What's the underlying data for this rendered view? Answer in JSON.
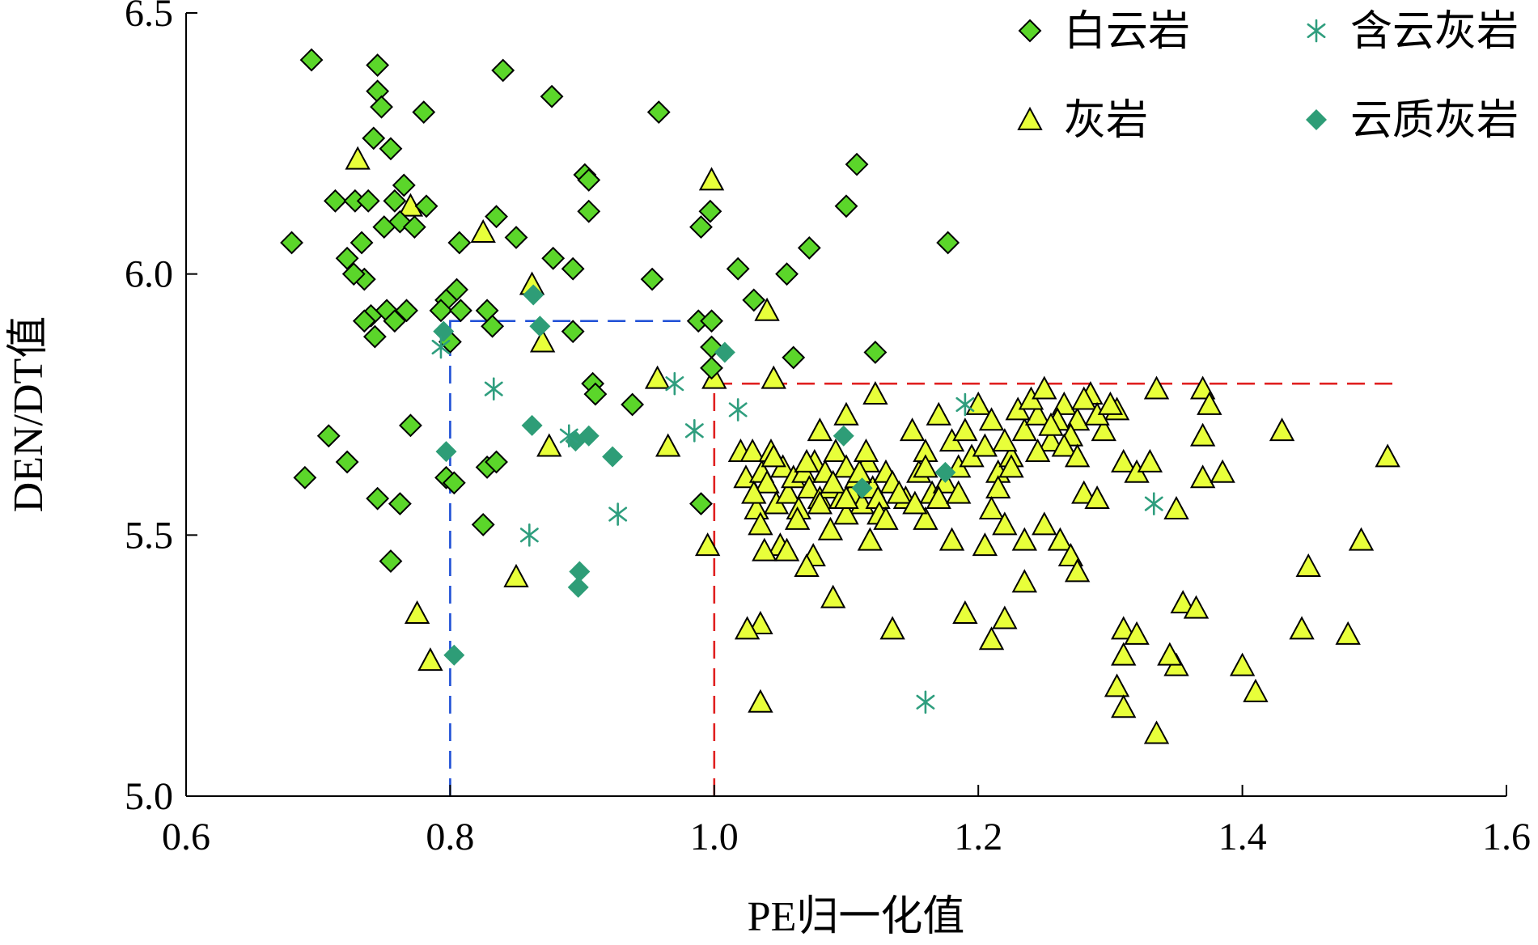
{
  "chart_data": {
    "type": "scatter",
    "title": "",
    "xlabel": "PE归一化值",
    "ylabel": "DEN/DT值",
    "xlim": [
      0.6,
      1.6
    ],
    "ylim": [
      5.0,
      6.5
    ],
    "x_ticks": [
      "0.6",
      "0.8",
      "1.0",
      "1.2",
      "1.4",
      "1.6"
    ],
    "y_ticks": [
      "5.0",
      "5.5",
      "6.0",
      "6.5"
    ],
    "grid": false,
    "legend_position": "top-right",
    "series": [
      {
        "name": "白云岩",
        "marker": "diamond",
        "color": "#5bd62a",
        "points": [
          [
            0.695,
            6.41
          ],
          [
            0.745,
            6.4
          ],
          [
            0.84,
            6.39
          ],
          [
            0.745,
            6.35
          ],
          [
            0.877,
            6.34
          ],
          [
            0.748,
            6.32
          ],
          [
            0.78,
            6.31
          ],
          [
            0.958,
            6.31
          ],
          [
            0.742,
            6.26
          ],
          [
            0.755,
            6.24
          ],
          [
            1.108,
            6.21
          ],
          [
            0.902,
            6.19
          ],
          [
            0.765,
            6.17
          ],
          [
            0.905,
            6.18
          ],
          [
            0.758,
            6.14
          ],
          [
            0.713,
            6.14
          ],
          [
            0.728,
            6.14
          ],
          [
            0.738,
            6.14
          ],
          [
            0.782,
            6.13
          ],
          [
            1.1,
            6.13
          ],
          [
            0.905,
            6.12
          ],
          [
            0.835,
            6.11
          ],
          [
            0.997,
            6.12
          ],
          [
            0.762,
            6.1
          ],
          [
            0.75,
            6.09
          ],
          [
            0.773,
            6.09
          ],
          [
            0.99,
            6.09
          ],
          [
            0.68,
            6.06
          ],
          [
            0.733,
            6.06
          ],
          [
            0.807,
            6.06
          ],
          [
            0.85,
            6.07
          ],
          [
            1.177,
            6.06
          ],
          [
            1.072,
            6.05
          ],
          [
            0.722,
            6.03
          ],
          [
            0.878,
            6.03
          ],
          [
            1.018,
            6.01
          ],
          [
            0.893,
            6.01
          ],
          [
            1.055,
            6.0
          ],
          [
            0.735,
            5.99
          ],
          [
            0.727,
            6.0
          ],
          [
            0.953,
            5.99
          ],
          [
            0.805,
            5.97
          ],
          [
            0.797,
            5.95
          ],
          [
            1.03,
            5.95
          ],
          [
            0.793,
            5.93
          ],
          [
            0.808,
            5.93
          ],
          [
            0.752,
            5.93
          ],
          [
            0.767,
            5.93
          ],
          [
            0.74,
            5.92
          ],
          [
            0.828,
            5.93
          ],
          [
            0.735,
            5.91
          ],
          [
            0.758,
            5.91
          ],
          [
            0.832,
            5.9
          ],
          [
            0.988,
            5.91
          ],
          [
            0.998,
            5.91
          ],
          [
            0.743,
            5.88
          ],
          [
            0.893,
            5.89
          ],
          [
            0.8,
            5.87
          ],
          [
            0.998,
            5.86
          ],
          [
            1.06,
            5.84
          ],
          [
            1.122,
            5.85
          ],
          [
            0.998,
            5.82
          ],
          [
            0.908,
            5.79
          ],
          [
            0.91,
            5.77
          ],
          [
            0.938,
            5.75
          ],
          [
            0.708,
            5.69
          ],
          [
            0.77,
            5.71
          ],
          [
            0.69,
            5.61
          ],
          [
            0.722,
            5.64
          ],
          [
            0.828,
            5.63
          ],
          [
            0.835,
            5.64
          ],
          [
            0.797,
            5.61
          ],
          [
            0.803,
            5.6
          ],
          [
            0.745,
            5.57
          ],
          [
            0.762,
            5.56
          ],
          [
            0.99,
            5.56
          ],
          [
            0.825,
            5.52
          ],
          [
            0.755,
            5.45
          ]
        ]
      },
      {
        "name": "含云灰岩",
        "marker": "asterisk",
        "color": "#2f9e7e",
        "points": [
          [
            0.793,
            5.86
          ],
          [
            0.833,
            5.78
          ],
          [
            0.97,
            5.79
          ],
          [
            1.018,
            5.74
          ],
          [
            0.985,
            5.7
          ],
          [
            0.89,
            5.69
          ],
          [
            1.19,
            5.75
          ],
          [
            0.927,
            5.54
          ],
          [
            0.86,
            5.5
          ],
          [
            1.333,
            5.56
          ],
          [
            1.16,
            5.18
          ]
        ]
      },
      {
        "name": "灰岩",
        "marker": "triangle",
        "color": "#e8ff3a",
        "points": [
          [
            0.73,
            6.22
          ],
          [
            0.77,
            6.13
          ],
          [
            0.998,
            6.18
          ],
          [
            0.825,
            6.08
          ],
          [
            0.862,
            5.98
          ],
          [
            0.87,
            5.87
          ],
          [
            1.04,
            5.93
          ],
          [
            0.957,
            5.8
          ],
          [
            1.0,
            5.8
          ],
          [
            1.045,
            5.8
          ],
          [
            1.122,
            5.77
          ],
          [
            1.08,
            5.7
          ],
          [
            1.1,
            5.73
          ],
          [
            0.775,
            5.35
          ],
          [
            0.785,
            5.26
          ],
          [
            0.85,
            5.42
          ],
          [
            0.965,
            5.67
          ],
          [
            0.875,
            5.67
          ],
          [
            0.995,
            5.48
          ],
          [
            1.02,
            5.66
          ],
          [
            1.024,
            5.61
          ],
          [
            1.029,
            5.66
          ],
          [
            1.032,
            5.55
          ],
          [
            1.036,
            5.62
          ],
          [
            1.04,
            5.6
          ],
          [
            1.043,
            5.66
          ],
          [
            1.047,
            5.56
          ],
          [
            1.052,
            5.63
          ],
          [
            1.056,
            5.58
          ],
          [
            1.06,
            5.61
          ],
          [
            1.064,
            5.55
          ],
          [
            1.068,
            5.62
          ],
          [
            1.072,
            5.59
          ],
          [
            1.076,
            5.64
          ],
          [
            1.08,
            5.57
          ],
          [
            1.084,
            5.62
          ],
          [
            1.088,
            5.59
          ],
          [
            1.092,
            5.66
          ],
          [
            1.096,
            5.57
          ],
          [
            1.1,
            5.63
          ],
          [
            1.104,
            5.58
          ],
          [
            1.108,
            5.61
          ],
          [
            1.112,
            5.56
          ],
          [
            1.116,
            5.64
          ],
          [
            1.12,
            5.59
          ],
          [
            1.124,
            5.57
          ],
          [
            1.13,
            5.62
          ],
          [
            1.035,
            5.52
          ],
          [
            1.05,
            5.48
          ],
          [
            1.063,
            5.53
          ],
          [
            1.075,
            5.46
          ],
          [
            1.088,
            5.51
          ],
          [
            1.1,
            5.54
          ],
          [
            1.118,
            5.49
          ],
          [
            1.03,
            5.58
          ],
          [
            1.045,
            5.65
          ],
          [
            1.07,
            5.64
          ],
          [
            1.09,
            5.6
          ],
          [
            1.11,
            5.62
          ],
          [
            1.135,
            5.6
          ],
          [
            1.145,
            5.57
          ],
          [
            1.155,
            5.62
          ],
          [
            1.165,
            5.58
          ],
          [
            1.175,
            5.6
          ],
          [
            1.185,
            5.63
          ],
          [
            1.195,
            5.65
          ],
          [
            1.205,
            5.67
          ],
          [
            1.215,
            5.62
          ],
          [
            1.225,
            5.65
          ],
          [
            1.235,
            5.7
          ],
          [
            1.245,
            5.73
          ],
          [
            1.255,
            5.68
          ],
          [
            1.265,
            5.75
          ],
          [
            1.275,
            5.72
          ],
          [
            1.285,
            5.77
          ],
          [
            1.295,
            5.7
          ],
          [
            1.305,
            5.74
          ],
          [
            1.15,
            5.7
          ],
          [
            1.16,
            5.66
          ],
          [
            1.17,
            5.73
          ],
          [
            1.18,
            5.68
          ],
          [
            1.19,
            5.7
          ],
          [
            1.2,
            5.75
          ],
          [
            1.21,
            5.72
          ],
          [
            1.22,
            5.68
          ],
          [
            1.23,
            5.74
          ],
          [
            1.24,
            5.76
          ],
          [
            1.25,
            5.78
          ],
          [
            1.26,
            5.72
          ],
          [
            1.27,
            5.69
          ],
          [
            1.28,
            5.76
          ],
          [
            1.29,
            5.73
          ],
          [
            1.3,
            5.75
          ],
          [
            1.31,
            5.64
          ],
          [
            1.215,
            5.59
          ],
          [
            1.225,
            5.63
          ],
          [
            1.245,
            5.66
          ],
          [
            1.255,
            5.71
          ],
          [
            1.265,
            5.67
          ],
          [
            1.275,
            5.65
          ],
          [
            1.21,
            5.55
          ],
          [
            1.22,
            5.52
          ],
          [
            1.235,
            5.49
          ],
          [
            1.18,
            5.49
          ],
          [
            1.16,
            5.53
          ],
          [
            1.205,
            5.48
          ],
          [
            1.25,
            5.52
          ],
          [
            1.262,
            5.49
          ],
          [
            1.27,
            5.46
          ],
          [
            1.275,
            5.43
          ],
          [
            1.28,
            5.58
          ],
          [
            1.29,
            5.57
          ],
          [
            1.32,
            5.62
          ],
          [
            1.33,
            5.64
          ],
          [
            1.35,
            5.55
          ],
          [
            1.37,
            5.61
          ],
          [
            1.37,
            5.69
          ],
          [
            1.385,
            5.62
          ],
          [
            1.335,
            5.78
          ],
          [
            1.37,
            5.78
          ],
          [
            1.375,
            5.75
          ],
          [
            1.43,
            5.7
          ],
          [
            1.51,
            5.65
          ],
          [
            1.49,
            5.49
          ],
          [
            1.45,
            5.44
          ],
          [
            1.355,
            5.37
          ],
          [
            1.365,
            5.36
          ],
          [
            1.31,
            5.32
          ],
          [
            1.32,
            5.31
          ],
          [
            1.35,
            5.25
          ],
          [
            1.4,
            5.25
          ],
          [
            1.41,
            5.2
          ],
          [
            1.445,
            5.32
          ],
          [
            1.48,
            5.31
          ],
          [
            1.305,
            5.21
          ],
          [
            1.31,
            5.17
          ],
          [
            1.335,
            5.12
          ],
          [
            1.31,
            5.27
          ],
          [
            1.345,
            5.27
          ],
          [
            1.19,
            5.35
          ],
          [
            1.21,
            5.3
          ],
          [
            1.22,
            5.34
          ],
          [
            1.235,
            5.41
          ],
          [
            1.135,
            5.32
          ],
          [
            1.09,
            5.38
          ],
          [
            1.07,
            5.44
          ],
          [
            1.055,
            5.47
          ],
          [
            1.038,
            5.47
          ],
          [
            1.035,
            5.33
          ],
          [
            1.025,
            5.32
          ],
          [
            1.035,
            5.18
          ],
          [
            1.14,
            5.58
          ],
          [
            1.152,
            5.56
          ],
          [
            1.17,
            5.57
          ],
          [
            1.185,
            5.58
          ],
          [
            1.16,
            5.63
          ],
          [
            1.115,
            5.66
          ],
          [
            1.125,
            5.54
          ],
          [
            1.13,
            5.53
          ],
          [
            1.1,
            5.57
          ],
          [
            1.08,
            5.56
          ]
        ]
      },
      {
        "name": "云质灰岩",
        "marker": "filled-diamond",
        "color": "#2e9d77",
        "points": [
          [
            0.863,
            5.96
          ],
          [
            0.868,
            5.9
          ],
          [
            0.795,
            5.89
          ],
          [
            1.008,
            5.85
          ],
          [
            0.862,
            5.71
          ],
          [
            0.895,
            5.68
          ],
          [
            0.905,
            5.69
          ],
          [
            0.923,
            5.65
          ],
          [
            0.797,
            5.66
          ],
          [
            1.098,
            5.69
          ],
          [
            1.112,
            5.59
          ],
          [
            1.175,
            5.62
          ],
          [
            0.898,
            5.43
          ],
          [
            0.897,
            5.4
          ],
          [
            0.803,
            5.27
          ]
        ]
      }
    ],
    "reference_lines": [
      {
        "style": "dashed",
        "color": "#1f4fd6",
        "points": [
          [
            0.8,
            5.0
          ],
          [
            0.8,
            5.91
          ],
          [
            1.0,
            5.91
          ]
        ]
      },
      {
        "style": "dashed",
        "color": "#e02020",
        "points": [
          [
            1.0,
            5.0
          ],
          [
            1.0,
            5.79
          ],
          [
            1.52,
            5.79
          ]
        ]
      }
    ]
  }
}
